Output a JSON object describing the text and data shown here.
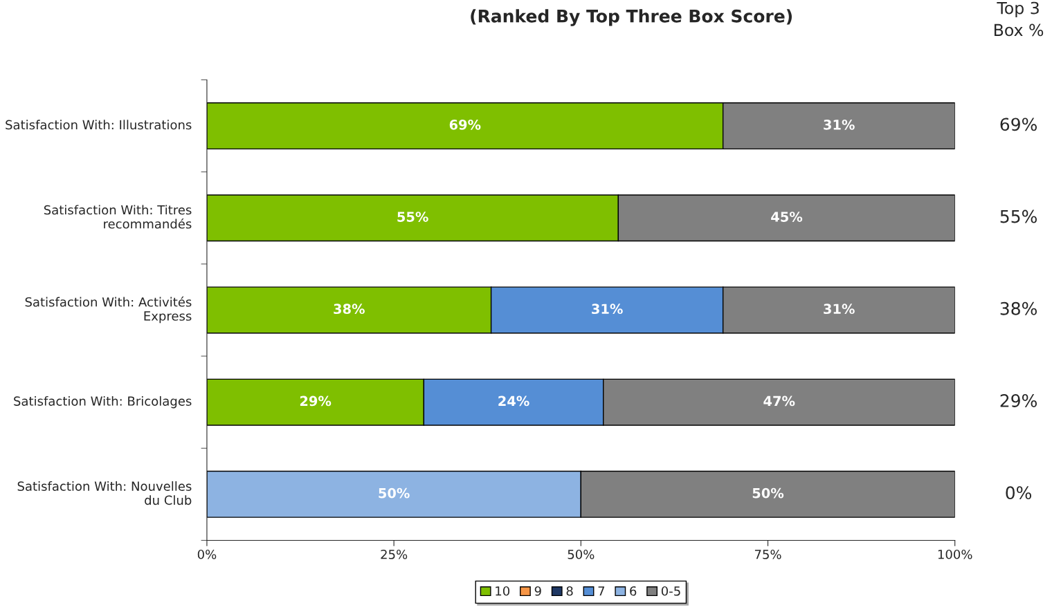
{
  "chart_data": {
    "type": "bar",
    "orientation": "horizontal",
    "stacked": true,
    "title": "(Ranked By Top Three Box Score)",
    "categories": [
      "Satisfaction With: Illustrations",
      "Satisfaction With: Titres recommandés",
      "Satisfaction With: Activités Express",
      "Satisfaction With: Bricolages",
      "Satisfaction With: Nouvelles du Club"
    ],
    "series": [
      {
        "name": "10",
        "color": "#7fbf00",
        "values": [
          69,
          55,
          38,
          29,
          null
        ],
        "value_labels": [
          "69%",
          "55%",
          "38%",
          "29%",
          null
        ]
      },
      {
        "name": "9",
        "color": "#f79646",
        "values": [
          null,
          null,
          null,
          null,
          null
        ]
      },
      {
        "name": "8",
        "color": "#1f3864",
        "values": [
          null,
          null,
          null,
          null,
          null
        ]
      },
      {
        "name": "7",
        "color": "#558ed5",
        "values": [
          null,
          null,
          31,
          24,
          null
        ],
        "value_labels": [
          null,
          null,
          "31%",
          "24%",
          null
        ]
      },
      {
        "name": "6",
        "color": "#8db3e2",
        "values": [
          null,
          null,
          null,
          null,
          50
        ],
        "value_labels": [
          null,
          null,
          null,
          null,
          "50%"
        ]
      },
      {
        "name": "0-5",
        "color": "#808080",
        "values": [
          31,
          45,
          31,
          47,
          50
        ],
        "value_labels": [
          "31%",
          "45%",
          "31%",
          "47%",
          "50%"
        ]
      }
    ],
    "xlim": [
      0,
      100
    ],
    "xticks": [
      {
        "value": 0,
        "label": "0%"
      },
      {
        "value": 25,
        "label": "25%"
      },
      {
        "value": 50,
        "label": "50%"
      },
      {
        "value": 75,
        "label": "75%"
      },
      {
        "value": 100,
        "label": "100%"
      }
    ],
    "annotations": [
      "Top 3\nBox %",
      "69%",
      "55%",
      "38%",
      "29%",
      "0%"
    ],
    "legend": "bottom",
    "grid": false
  }
}
